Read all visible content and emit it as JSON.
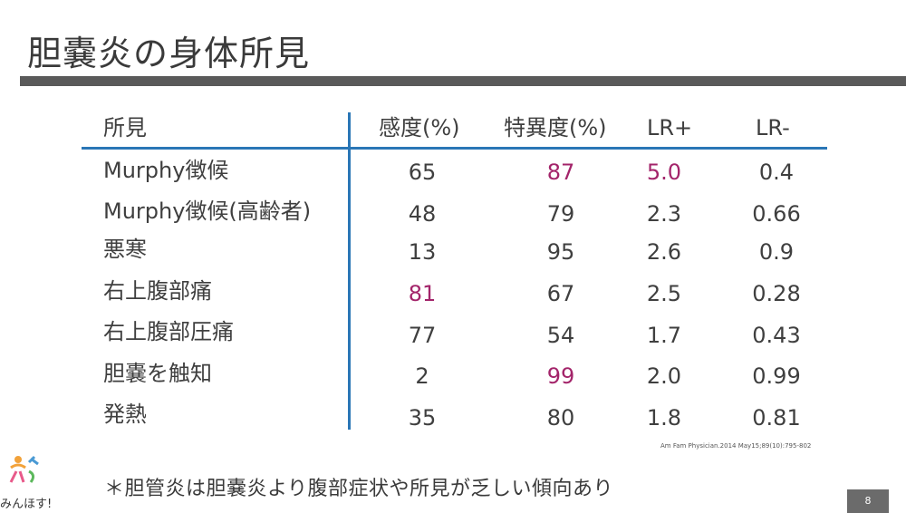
{
  "title": "胆嚢炎の身体所見",
  "columns": [
    "所見",
    "感度(%)",
    "特異度(%)",
    "LR+",
    "LR-"
  ],
  "rows": [
    {
      "finding": "Murphy徴候",
      "sensitivity": "65",
      "specificity": "87",
      "lr_pos": "5.0",
      "lr_neg": "0.4"
    },
    {
      "finding": "Murphy徴候(高齢者)",
      "sensitivity": "48",
      "specificity": "79",
      "lr_pos": "2.3",
      "lr_neg": "0.66"
    },
    {
      "finding": "悪寒",
      "sensitivity": "13",
      "specificity": "95",
      "lr_pos": "2.6",
      "lr_neg": "0.9"
    },
    {
      "finding": "右上腹部痛",
      "sensitivity": "81",
      "specificity": "67",
      "lr_pos": "2.5",
      "lr_neg": "0.28"
    },
    {
      "finding": "右上腹部圧痛",
      "sensitivity": "77",
      "specificity": "54",
      "lr_pos": "1.7",
      "lr_neg": "0.43"
    },
    {
      "finding": "胆嚢を触知",
      "sensitivity": "2",
      "specificity": "99",
      "lr_pos": "2.0",
      "lr_neg": "0.99"
    },
    {
      "finding": "発熱",
      "sensitivity": "35",
      "specificity": "80",
      "lr_pos": "1.8",
      "lr_neg": "0.81"
    }
  ],
  "citation": "Am Fam Physician.2014 May15;89(10):795-802",
  "note": "＊胆管炎は胆嚢炎より腹部症状や所見が乏しい傾向あり",
  "logo_text": "みんほす!",
  "page_number": "8",
  "colors": {
    "highlight": "#a3246a",
    "rule_blue": "#2a76b6",
    "title_rule": "#5a5a5a"
  }
}
